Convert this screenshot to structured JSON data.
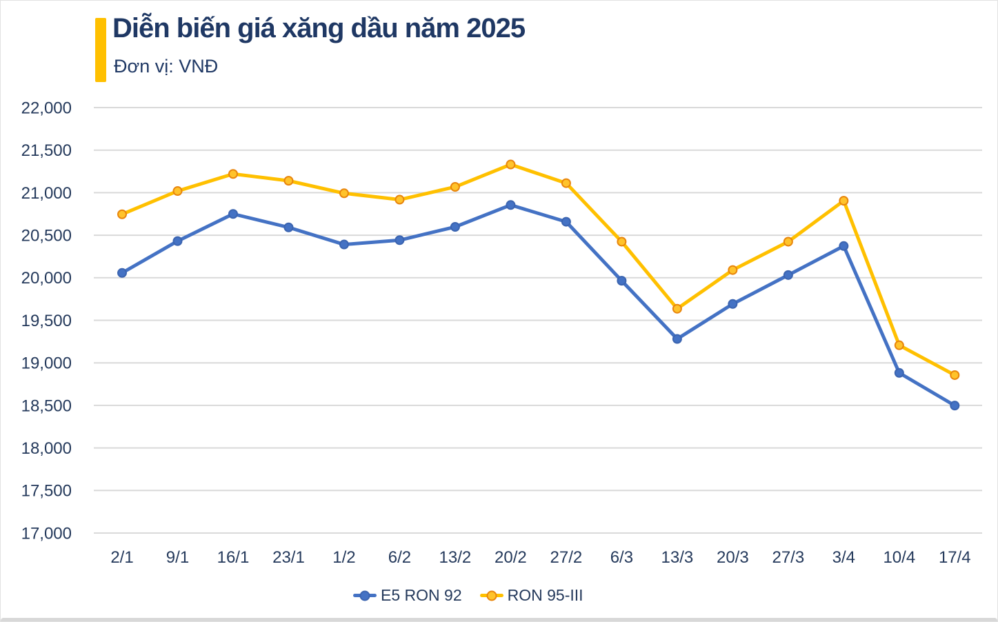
{
  "page": {
    "accent_color": "#FFC000",
    "title_color": "#1F3864",
    "background_color": "#FFFFFF"
  },
  "chart_data": {
    "type": "line",
    "title": "Diễn biến giá xăng dầu năm 2025",
    "unit_label": "Đơn vị: VNĐ",
    "categories": [
      "2/1",
      "9/1",
      "16/1",
      "23/1",
      "1/2",
      "6/2",
      "13/2",
      "20/2",
      "27/2",
      "6/3",
      "13/3",
      "20/3",
      "27/3",
      "3/4",
      "10/4",
      "17/4"
    ],
    "series": [
      {
        "name": "E5 RON 92",
        "color": "#4472C4",
        "marker_fill": "#4472C4",
        "marker_stroke": "#3B64B0",
        "values": [
          20057,
          20431,
          20750,
          20592,
          20391,
          20442,
          20598,
          20855,
          20658,
          19965,
          19281,
          19692,
          20032,
          20373,
          18882,
          18498
        ]
      },
      {
        "name": "RON 95-III",
        "color": "#FFC000",
        "marker_fill": "#FFC32B",
        "marker_stroke": "#E8850C",
        "values": [
          20746,
          21019,
          21220,
          21140,
          20993,
          20918,
          21068,
          21331,
          21112,
          20424,
          19636,
          20091,
          20424,
          20905,
          19207,
          18856
        ]
      }
    ],
    "ylim": [
      17000,
      22000
    ],
    "y_tick_interval": 500,
    "y_tick_labels": [
      "17,000",
      "17,500",
      "18,000",
      "18,500",
      "19,000",
      "19,500",
      "20,000",
      "20,500",
      "21,000",
      "21,500",
      "22,000"
    ],
    "grid": "horizontal gridlines on",
    "legend_position": "bottom",
    "colors": {
      "gridline": "#D9D9D9",
      "axis_label": "#24395B",
      "legend_text": "#24395B"
    }
  }
}
